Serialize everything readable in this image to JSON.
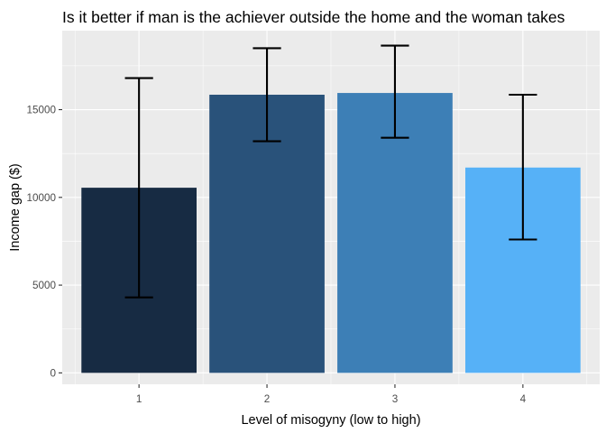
{
  "chart_data": {
    "type": "bar",
    "title": "Is it better if man is the achiever outside the home and the woman takes",
    "xlabel": "Level of misogyny (low to high)",
    "ylabel": "Income gap ($)",
    "categories": [
      "1",
      "2",
      "3",
      "4"
    ],
    "values": [
      10550,
      15850,
      15950,
      11700
    ],
    "error_low": [
      4300,
      13200,
      13400,
      7600
    ],
    "error_high": [
      16800,
      18500,
      18650,
      15850
    ],
    "colors": [
      "#172b43",
      "#29527a",
      "#3d7fb6",
      "#56b1f7"
    ],
    "ylim": [
      -650,
      19500
    ],
    "yticks": [
      0,
      5000,
      10000,
      15000
    ],
    "ytick_labels": [
      "0",
      "5000",
      "10000",
      "15000"
    ],
    "grid": true,
    "legend": "none",
    "panel_background": "#ebebeb",
    "error_bar_color": "#000000"
  }
}
